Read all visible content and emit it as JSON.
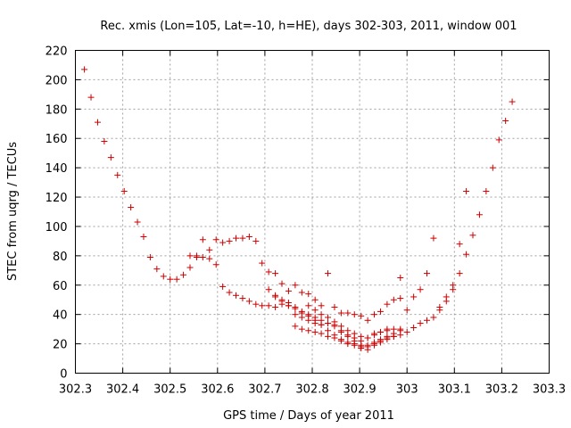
{
  "chart_data": {
    "type": "scatter",
    "title": "Rec. xmis (Lon=105, Lat=-10, h=HE), days 302-303, 2011, window 001",
    "xlabel": "GPS time / Days of year 2011",
    "ylabel": "STEC from uqrg / TECUs",
    "xlim": [
      302.3,
      303.3
    ],
    "ylim": [
      0,
      220
    ],
    "xticks": [
      "302.3",
      "302.4",
      "302.5",
      "302.6",
      "302.7",
      "302.8",
      "302.9",
      "303",
      "303.1",
      "303.2",
      "303.3"
    ],
    "yticks": [
      "0",
      "20",
      "40",
      "60",
      "80",
      "100",
      "120",
      "140",
      "160",
      "180",
      "200",
      "220"
    ],
    "grid": true,
    "marker": "+",
    "color": "#cc0000",
    "series": [
      {
        "x": [
          302.319,
          302.333,
          302.347,
          302.361,
          302.375,
          302.389,
          302.403,
          302.417,
          302.431,
          302.444,
          302.458,
          302.472,
          302.486,
          302.5,
          302.514,
          302.528,
          302.542,
          302.556,
          302.569,
          302.583,
          302.597,
          302.611,
          302.625,
          302.639,
          302.653,
          302.667,
          302.681,
          302.694,
          302.708,
          302.722,
          302.736,
          302.75,
          302.764,
          302.778,
          302.792,
          302.806,
          302.819,
          302.833,
          302.847,
          302.861,
          302.875,
          302.889,
          302.903,
          302.917,
          302.931,
          302.944,
          302.958,
          302.972,
          302.986
        ],
        "y": [
          207,
          188,
          171,
          158,
          147,
          135,
          124,
          113,
          103,
          93,
          79,
          71,
          66,
          64,
          64,
          67,
          72,
          79,
          79,
          84,
          91,
          89,
          90,
          92,
          92,
          93,
          90,
          75,
          69,
          68,
          61,
          56,
          60,
          55,
          54,
          50,
          46,
          68,
          45,
          41,
          41,
          40,
          39,
          36,
          40,
          42,
          47,
          50,
          51
        ]
      },
      {
        "x": [
          302.542,
          302.556,
          302.569,
          302.583,
          302.597,
          302.611,
          302.625,
          302.639,
          302.653,
          302.667,
          302.681,
          302.694,
          302.708,
          302.722,
          302.736,
          302.75,
          302.764,
          302.778,
          302.792,
          302.806,
          302.819,
          302.833,
          302.847,
          302.861,
          302.875,
          302.889,
          302.903,
          302.917,
          302.931,
          302.944,
          302.958,
          302.972,
          302.986,
          303.0,
          303.014,
          303.028,
          303.042,
          303.056,
          303.069,
          303.083,
          303.097,
          303.111,
          303.125,
          303.139,
          303.153,
          303.167,
          303.181,
          303.194,
          303.208,
          303.222
        ],
        "y": [
          80,
          80,
          91,
          78,
          74,
          59,
          55,
          53,
          51,
          49,
          47,
          46,
          46,
          45,
          47,
          46,
          40,
          38,
          36,
          34,
          33,
          34,
          33,
          28,
          25,
          24,
          22,
          24,
          27,
          28,
          29,
          30,
          29,
          43,
          52,
          57,
          68,
          92,
          43,
          49,
          57,
          68,
          81,
          94,
          108,
          124,
          140,
          159,
          172,
          185
        ]
      },
      {
        "x": [
          302.722,
          302.736,
          302.75,
          302.764,
          302.778,
          302.792,
          302.806,
          302.819,
          302.833,
          302.847,
          302.861,
          302.875,
          302.889,
          302.903,
          302.917,
          302.931,
          302.944,
          302.958,
          302.972,
          302.986,
          303.0,
          303.014,
          303.028,
          303.042,
          303.056,
          303.069,
          303.083,
          303.097,
          303.111,
          303.125
        ],
        "y": [
          52,
          49,
          46,
          44,
          41,
          39,
          36,
          33,
          29,
          26,
          23,
          21,
          20,
          19,
          19,
          21,
          23,
          25,
          27,
          30,
          28,
          31,
          34,
          36,
          38,
          45,
          52,
          60,
          88,
          124
        ]
      },
      {
        "x": [
          302.708,
          302.722,
          302.736,
          302.75,
          302.764,
          302.778,
          302.792,
          302.806,
          302.819,
          302.833,
          302.847,
          302.861,
          302.875,
          302.889,
          302.903,
          302.917,
          302.931,
          302.944,
          302.958,
          302.972,
          302.986
        ],
        "y": [
          57,
          53,
          50,
          48,
          45,
          42,
          40,
          38,
          36,
          34,
          32,
          29,
          26,
          22,
          18,
          16,
          19,
          21,
          23,
          25,
          26
        ]
      },
      {
        "x": [
          302.764,
          302.778,
          302.792,
          302.806,
          302.819,
          302.833,
          302.847,
          302.861,
          302.875,
          302.889,
          302.903,
          302.917,
          302.931,
          302.944,
          302.958,
          302.972,
          302.986
        ],
        "y": [
          32,
          30,
          29,
          28,
          27,
          25,
          24,
          22,
          20,
          19,
          17,
          18,
          20,
          22,
          24,
          25,
          65
        ]
      },
      {
        "x": [
          302.792,
          302.806,
          302.819,
          302.833,
          302.847,
          302.861,
          302.875,
          302.889,
          302.903,
          302.917,
          302.931,
          302.944,
          302.958
        ],
        "y": [
          46,
          43,
          40,
          38,
          35,
          32,
          29,
          27,
          25,
          24,
          26,
          28,
          30
        ]
      }
    ]
  }
}
